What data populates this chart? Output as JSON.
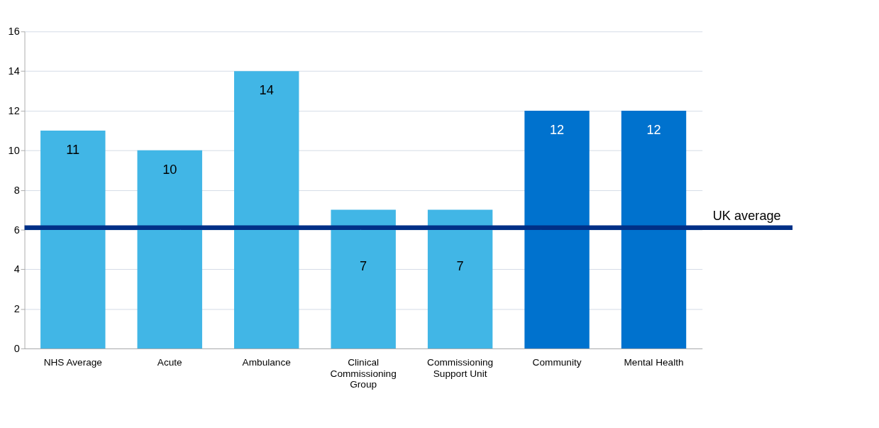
{
  "chart_data": {
    "type": "bar",
    "categories": [
      "NHS Average",
      "Acute",
      "Ambulance",
      "Clinical Commissioning Group",
      "Commissioning Support Unit",
      "Community",
      "Mental Health"
    ],
    "values": [
      11,
      10,
      14,
      7,
      7,
      12,
      12
    ],
    "colors": [
      "#41b6e6",
      "#41b6e6",
      "#41b6e6",
      "#41b6e6",
      "#41b6e6",
      "#0072ce",
      "#0072ce"
    ],
    "data_labels": true,
    "ylim": [
      0,
      16
    ],
    "yticks": [
      0,
      2,
      4,
      6,
      8,
      10,
      12,
      14,
      16
    ],
    "grid": "y",
    "ref_lines": [
      {
        "axis": "y",
        "value": 6.1,
        "label": "UK average",
        "color": "#003087"
      }
    ]
  }
}
